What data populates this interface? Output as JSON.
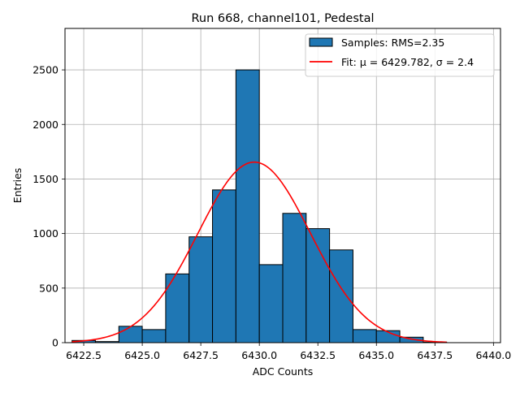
{
  "chart_data": {
    "type": "bar",
    "title": "Run 668, channel101, Pedestal",
    "xlabel": "ADC Counts",
    "ylabel": "Entries",
    "xlim": [
      6421.7,
      6440.3
    ],
    "ylim": [
      0,
      2880
    ],
    "x_ticks": [
      6422.5,
      6425.0,
      6427.5,
      6430.0,
      6432.5,
      6435.0,
      6437.5,
      6440.0
    ],
    "x_tick_labels": [
      "6422.5",
      "6425.0",
      "6427.5",
      "6430.0",
      "6432.5",
      "6435.0",
      "6437.5",
      "6440.0"
    ],
    "y_ticks": [
      0,
      500,
      1000,
      1500,
      2000,
      2500
    ],
    "y_tick_labels": [
      "0",
      "500",
      "1000",
      "1500",
      "2000",
      "2500"
    ],
    "grid": true,
    "legend_position": "top-right",
    "histogram": {
      "name": "Samples: RMS=2.35",
      "color": "#1f77b4",
      "edge_color": "#000000",
      "bin_edges": [
        6422,
        6423,
        6424,
        6425,
        6426,
        6427,
        6428,
        6429,
        6430,
        6431,
        6432,
        6433,
        6434,
        6435,
        6436,
        6437,
        6438,
        6439,
        6440
      ],
      "counts": [
        20,
        10,
        150,
        120,
        630,
        970,
        1400,
        2500,
        715,
        1185,
        1045,
        850,
        120,
        110,
        50,
        5,
        0,
        0
      ]
    },
    "fit": {
      "name": "Fit: μ = 6429.782, σ = 2.4",
      "color": "#ff0000",
      "mu": 6429.782,
      "sigma": 2.4,
      "amplitude": 1655,
      "x_range": [
        6422,
        6438
      ]
    }
  }
}
